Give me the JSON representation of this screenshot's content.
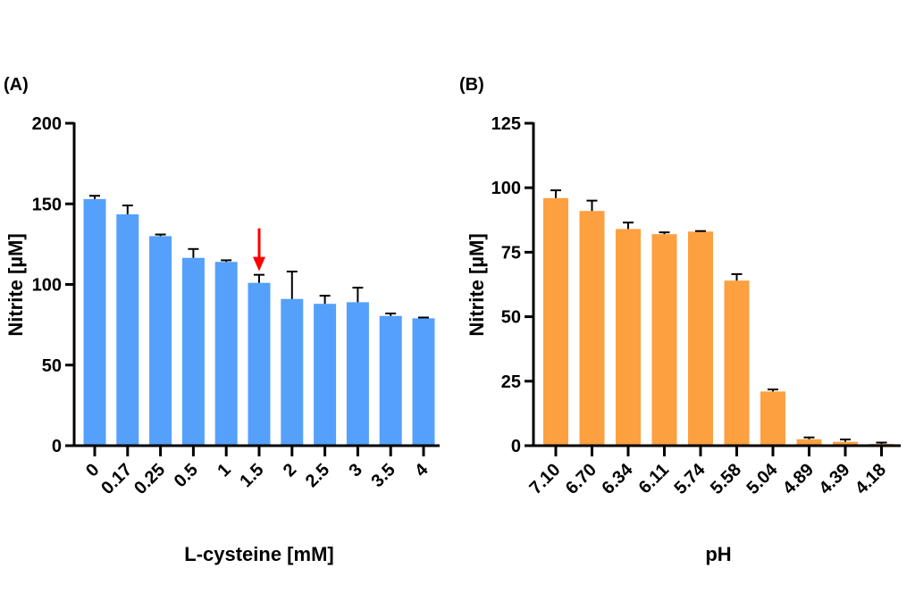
{
  "chart_data": [
    {
      "type": "bar",
      "panel_label": "(A)",
      "title": "",
      "xlabel": "L-cysteine [mM]",
      "ylabel": "Nitrite [µM]",
      "ylim": [
        0,
        200
      ],
      "yticks": [
        0,
        50,
        100,
        150,
        200
      ],
      "grid": false,
      "legend": "none",
      "color": "#55a0fb",
      "categories": [
        "0",
        "0.17",
        "0.25",
        "0.5",
        "1",
        "1.5",
        "2",
        "2.5",
        "3",
        "3.5",
        "4"
      ],
      "values": [
        153,
        143.5,
        130,
        116.5,
        114,
        101,
        91,
        88,
        89,
        80.5,
        79
      ],
      "error_upper": [
        155,
        149,
        131,
        122,
        115,
        106,
        108,
        93,
        98,
        82,
        79.5
      ],
      "annotations": [
        {
          "type": "arrow",
          "color": "#ff0000",
          "category": "1.5",
          "direction": "down"
        }
      ]
    },
    {
      "type": "bar",
      "panel_label": "(B)",
      "title": "",
      "xlabel": "pH",
      "ylabel": "Nitrite [µM]",
      "ylim": [
        0,
        125
      ],
      "yticks": [
        0,
        25,
        50,
        75,
        100,
        125
      ],
      "grid": false,
      "legend": "none",
      "color": "#fda040",
      "categories": [
        "7.10",
        "6.70",
        "6.34",
        "6.11",
        "5.74",
        "5.58",
        "5.04",
        "4.89",
        "4.39",
        "4.18"
      ],
      "values": [
        96,
        91,
        84,
        82,
        83,
        64,
        21,
        2.5,
        1.5,
        0.7
      ],
      "error_upper": [
        99,
        95,
        86.5,
        82.7,
        83.2,
        66.5,
        21.8,
        3.2,
        2.4,
        1.2
      ],
      "annotations": []
    }
  ]
}
